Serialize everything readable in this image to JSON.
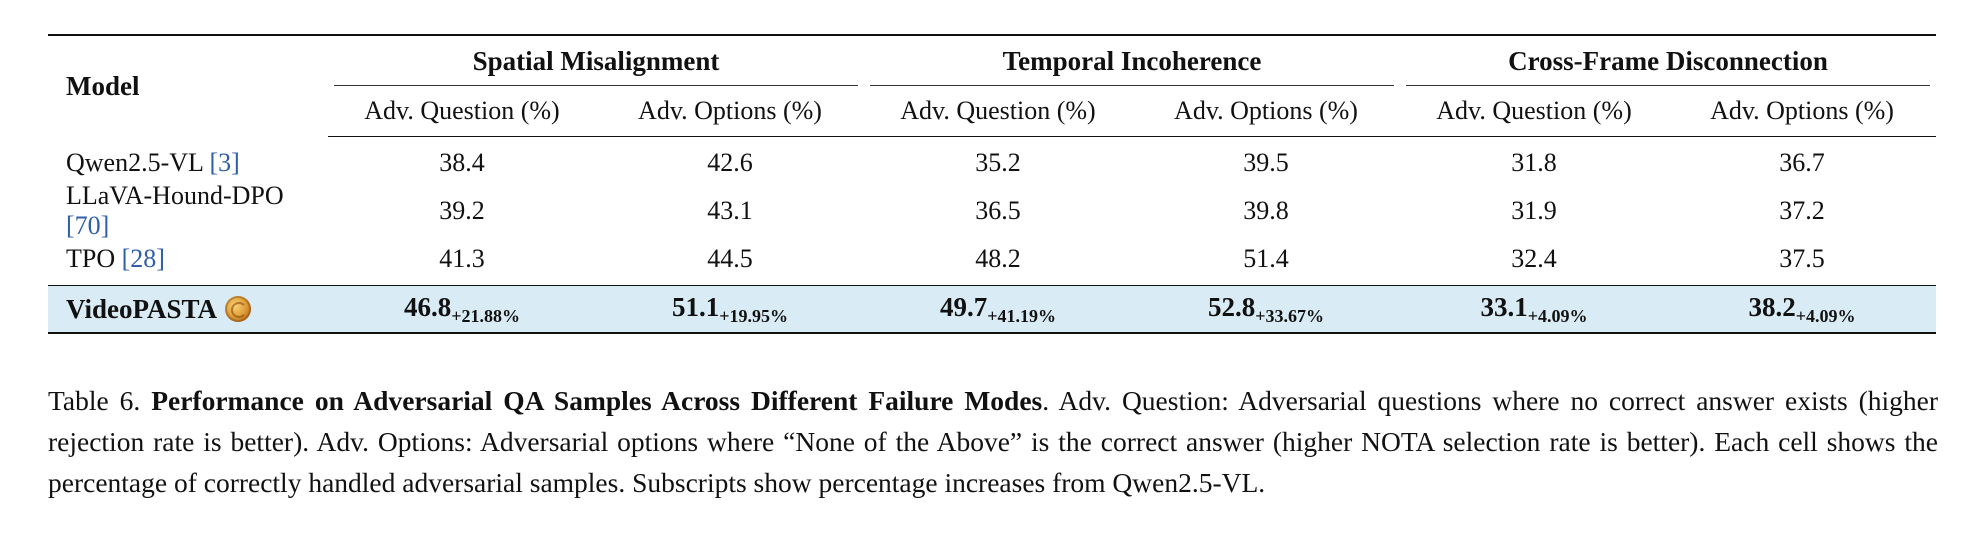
{
  "table": {
    "model_header": "Model",
    "groups": [
      "Spatial Misalignment",
      "Temporal Incoherence",
      "Cross-Frame Disconnection"
    ],
    "subheaders": [
      "Adv. Question (%)",
      "Adv. Options (%)",
      "Adv. Question (%)",
      "Adv. Options (%)",
      "Adv. Question (%)",
      "Adv. Options (%)"
    ],
    "rows": [
      {
        "model": "Qwen2.5-VL",
        "cite": "[3]",
        "values": [
          "38.4",
          "42.6",
          "35.2",
          "39.5",
          "31.8",
          "36.7"
        ]
      },
      {
        "model": "LLaVA-Hound-DPO",
        "cite": "[70]",
        "values": [
          "39.2",
          "43.1",
          "36.5",
          "39.8",
          "31.9",
          "37.2"
        ]
      },
      {
        "model": "TPO",
        "cite": "[28]",
        "values": [
          "41.3",
          "44.5",
          "48.2",
          "51.4",
          "32.4",
          "37.5"
        ]
      }
    ],
    "ours": {
      "model": "VideoPASTA",
      "logo_icon": "pasta-logo-icon",
      "values": [
        "46.8",
        "51.1",
        "49.7",
        "52.8",
        "33.1",
        "38.2"
      ],
      "gains": [
        "+21.88%",
        "+19.95%",
        "+41.19%",
        "+33.67%",
        "+4.09%",
        "+4.09%"
      ]
    }
  },
  "caption": {
    "label": "Table 6.",
    "title": "Performance on Adversarial QA Samples Across Different Failure Modes",
    "body": ". Adv. Question: Adversarial questions where no correct answer exists (higher rejection rate is better). Adv. Options: Adversarial options where “None of the Above” is the correct answer (higher NOTA selection rate is better). Each cell shows the percentage of correctly handled adversarial samples. Subscripts show percentage increases from Qwen2.5-VL."
  }
}
